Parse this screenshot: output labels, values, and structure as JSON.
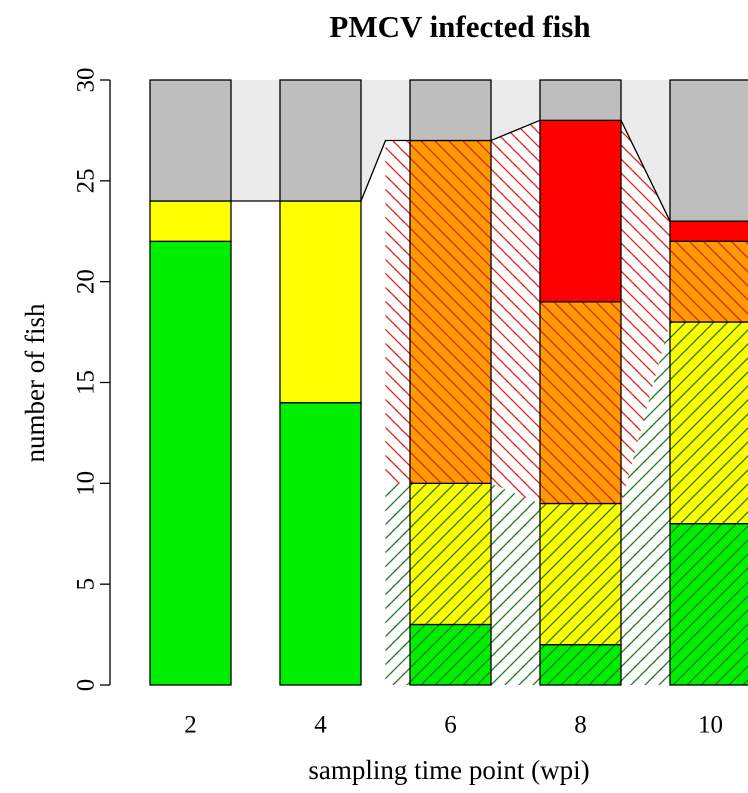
{
  "chart_data": {
    "type": "stacked_bar",
    "title": "PMCV infected fish",
    "xlabel": "sampling time point (wpi)",
    "ylabel": "number of fish",
    "categories": [
      "2",
      "4",
      "6",
      "8",
      "10"
    ],
    "hatched": [
      false,
      false,
      true,
      true,
      true
    ],
    "series": [
      {
        "color": "#00ee00",
        "hatch": "#1e7a1e",
        "hatch_dir": "/",
        "values": [
          22,
          14,
          3,
          2,
          8
        ]
      },
      {
        "color": "#ffff00",
        "hatch": "#1e7a1e",
        "hatch_dir": "/",
        "values": [
          2,
          10,
          7,
          7,
          10
        ]
      },
      {
        "color": "#ff9a00",
        "hatch": "#e0201a",
        "hatch_dir": "\\",
        "values": [
          0,
          0,
          17,
          10,
          4
        ]
      },
      {
        "color": "#ff0000",
        "values": [
          0,
          0,
          0,
          9,
          1
        ]
      },
      {
        "color": "#bebebe",
        "values": [
          6,
          6,
          3,
          2,
          7
        ]
      }
    ],
    "gap_color": "#ebebeb",
    "ylim": [
      0,
      30
    ],
    "yticks": [
      0,
      5,
      10,
      15,
      20,
      25,
      30
    ]
  }
}
